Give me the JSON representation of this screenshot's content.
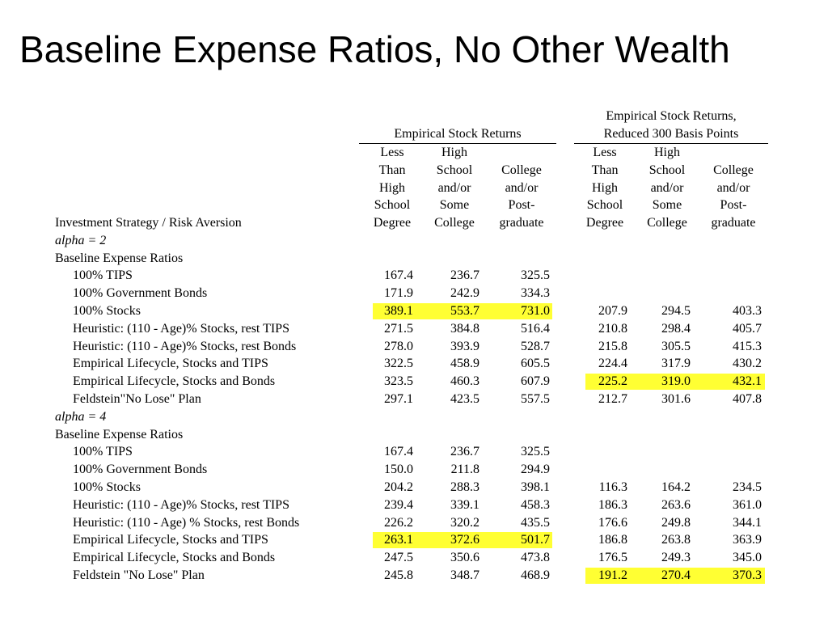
{
  "title": "Baseline Expense Ratios, No Other Wealth",
  "groups": [
    {
      "label": "Empirical Stock Returns"
    },
    {
      "label": "Empirical Stock Returns,\nReduced 300 Basis Points"
    }
  ],
  "column_headers": [
    "Less\nThan\nHigh\nSchool\nDegree",
    "High\nSchool\nand/or\nSome\nCollege",
    "College\nand/or\nPost-\ngraduate",
    "Less\nThan\nHigh\nSchool\nDegree",
    "High\nSchool\nand/or\nSome\nCollege",
    "College\nand/or\nPost-\ngraduate"
  ],
  "row_header": "Investment Strategy / Risk Aversion",
  "highlight_color": "#ffff33",
  "rows": [
    {
      "label": "alpha = 2",
      "style": "italic",
      "values": []
    },
    {
      "label": "Baseline Expense Ratios",
      "values": []
    },
    {
      "label": "100% TIPS",
      "indent": true,
      "values": [
        "167.4",
        "236.7",
        "325.5",
        "",
        "",
        ""
      ]
    },
    {
      "label": "100% Government Bonds",
      "indent": true,
      "values": [
        "171.9",
        "242.9",
        "334.3",
        "",
        "",
        ""
      ]
    },
    {
      "label": "100% Stocks",
      "indent": true,
      "values": [
        "389.1",
        "553.7",
        "731.0",
        "207.9",
        "294.5",
        "403.3"
      ],
      "highlight": [
        0
      ]
    },
    {
      "label": "Heuristic: (110  - Age)% Stocks, rest TIPS",
      "indent": true,
      "values": [
        "271.5",
        "384.8",
        "516.4",
        "210.8",
        "298.4",
        "405.7"
      ]
    },
    {
      "label": "Heuristic: (110  - Age)% Stocks, rest Bonds",
      "indent": true,
      "values": [
        "278.0",
        "393.9",
        "528.7",
        "215.8",
        "305.5",
        "415.3"
      ]
    },
    {
      "label": "Empirical Lifecycle, Stocks and TIPS",
      "indent": true,
      "values": [
        "322.5",
        "458.9",
        "605.5",
        "224.4",
        "317.9",
        "430.2"
      ]
    },
    {
      "label": "Empirical Lifecycle, Stocks and Bonds",
      "indent": true,
      "values": [
        "323.5",
        "460.3",
        "607.9",
        "225.2",
        "319.0",
        "432.1"
      ],
      "highlight": [
        1
      ]
    },
    {
      "label": "Feldstein\"No Lose\" Plan",
      "indent": true,
      "values": [
        "297.1",
        "423.5",
        "557.5",
        "212.7",
        "301.6",
        "407.8"
      ]
    },
    {
      "label": "alpha = 4",
      "style": "italic",
      "values": []
    },
    {
      "label": "Baseline Expense Ratios",
      "values": []
    },
    {
      "label": "100% TIPS",
      "indent": true,
      "values": [
        "167.4",
        "236.7",
        "325.5",
        "",
        "",
        ""
      ]
    },
    {
      "label": "100% Government Bonds",
      "indent": true,
      "values": [
        "150.0",
        "211.8",
        "294.9",
        "",
        "",
        ""
      ]
    },
    {
      "label": "100% Stocks",
      "indent": true,
      "values": [
        "204.2",
        "288.3",
        "398.1",
        "116.3",
        "164.2",
        "234.5"
      ]
    },
    {
      "label": "Heuristic: (110  - Age)% Stocks, rest TIPS",
      "indent": true,
      "values": [
        "239.4",
        "339.1",
        "458.3",
        "186.3",
        "263.6",
        "361.0"
      ]
    },
    {
      "label": "Heuristic: (110  - Age) % Stocks, rest Bonds",
      "indent": true,
      "values": [
        "226.2",
        "320.2",
        "435.5",
        "176.6",
        "249.8",
        "344.1"
      ]
    },
    {
      "label": "Empirical Lifecycle, Stocks and TIPS",
      "indent": true,
      "values": [
        "263.1",
        "372.6",
        "501.7",
        "186.8",
        "263.8",
        "363.9"
      ],
      "highlight": [
        0
      ]
    },
    {
      "label": "Empirical Lifecycle, Stocks and Bonds",
      "indent": true,
      "values": [
        "247.5",
        "350.6",
        "473.8",
        "176.5",
        "249.3",
        "345.0"
      ]
    },
    {
      "label": "Feldstein  \"No Lose\" Plan",
      "indent": true,
      "values": [
        "245.8",
        "348.7",
        "468.9",
        "191.2",
        "270.4",
        "370.3"
      ],
      "highlight": [
        1
      ]
    }
  ]
}
